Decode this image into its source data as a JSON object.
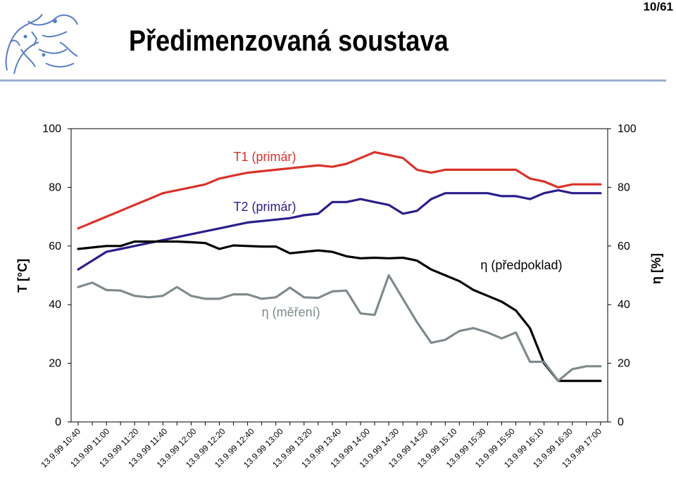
{
  "slide": {
    "number": "10/61",
    "title": "Předimenzovaná soustava"
  },
  "chart_data": {
    "type": "line",
    "xlabel": "",
    "ylabel_left": "T [°C]",
    "ylabel_right": "η [%]",
    "ylim": [
      0,
      100
    ],
    "yticks": [
      0,
      20,
      40,
      60,
      80,
      100
    ],
    "grid": false,
    "categories": [
      "13.9.99 10:40",
      "13.9.99 11:00",
      "13.9.99 11:20",
      "13.9.99 11:40",
      "13.9.99 12:00",
      "13.9.99 12:20",
      "13.9.99 12:40",
      "13.9.99 13:00",
      "13.9.99 13:20",
      "13.9.99 13:40",
      "13.9.99 14:00",
      "13.9.99 14:30",
      "13.9.99 14:50",
      "13.9.99 15:10",
      "13.9.99 15:30",
      "13.9.99 15:50",
      "13.9.99 16:10",
      "13.9.99 16:30",
      "13.9.99 17:00"
    ],
    "series": [
      {
        "name": "T1 (primár)",
        "color": "#d9332b",
        "x": [
          0,
          1,
          2,
          3,
          4,
          5,
          6,
          7,
          8,
          9,
          10,
          11,
          12,
          13,
          14,
          15,
          16,
          17,
          18,
          19,
          20,
          21,
          22,
          23,
          24,
          25,
          26,
          27,
          28,
          29,
          30,
          31,
          32,
          33,
          34,
          35,
          36,
          37
        ],
        "values": [
          66,
          68,
          70,
          72,
          74,
          76,
          78,
          79,
          80,
          81,
          83,
          84,
          85,
          85.5,
          86,
          86.5,
          87,
          87.5,
          87,
          88,
          90,
          92,
          91,
          90,
          86,
          85,
          86,
          86,
          86,
          86,
          86,
          86,
          83,
          82,
          80,
          81,
          81,
          81
        ],
        "label_at": [
          11,
          89
        ]
      },
      {
        "name": "T2 (primár)",
        "color": "#2a1f8a",
        "x": [
          0,
          1,
          2,
          3,
          4,
          5,
          6,
          7,
          8,
          9,
          10,
          11,
          12,
          13,
          14,
          15,
          16,
          17,
          18,
          19,
          20,
          21,
          22,
          23,
          24,
          25,
          26,
          27,
          28,
          29,
          30,
          31,
          32,
          33,
          34,
          35,
          36,
          37
        ],
        "values": [
          52,
          55,
          58,
          59,
          60,
          61,
          62,
          63,
          64,
          65,
          66,
          67,
          68,
          68.5,
          69,
          69.5,
          70.5,
          71,
          75,
          75,
          76,
          75,
          74,
          71,
          72,
          76,
          78,
          78,
          78,
          78,
          77,
          77,
          76,
          78,
          79,
          78,
          78,
          78
        ],
        "label_at": [
          11,
          72
        ]
      },
      {
        "name": "η (předpoklad)",
        "color": "#000000",
        "x": [
          0,
          1,
          2,
          3,
          4,
          5,
          6,
          7,
          8,
          9,
          10,
          11,
          12,
          13,
          14,
          15,
          16,
          17,
          18,
          19,
          20,
          21,
          22,
          23,
          24,
          25,
          26,
          27,
          28,
          29,
          30,
          31,
          32,
          33,
          34,
          35,
          36,
          37
        ],
        "values": [
          59,
          59.5,
          60,
          60,
          61.5,
          61.5,
          61.5,
          61.5,
          61.3,
          61,
          59,
          60.2,
          60,
          59.8,
          59.8,
          57.5,
          58,
          58.5,
          58,
          56.5,
          55.8,
          56,
          55.8,
          56,
          55,
          52,
          50,
          48,
          45,
          43,
          41,
          38,
          32,
          20,
          14,
          14,
          14,
          14
        ],
        "label_at": [
          28.5,
          52
        ]
      },
      {
        "name": "η (měření)",
        "color": "#7f8a8c",
        "x": [
          0,
          1,
          2,
          3,
          4,
          5,
          6,
          7,
          8,
          9,
          10,
          11,
          12,
          13,
          14,
          15,
          16,
          17,
          18,
          19,
          20,
          21,
          22,
          23,
          24,
          25,
          26,
          27,
          28,
          29,
          30,
          31,
          32,
          33,
          34,
          35,
          36,
          37
        ],
        "values": [
          46,
          47.5,
          45,
          44.8,
          43,
          42.5,
          43,
          46,
          43,
          42,
          42,
          43.5,
          43.5,
          42,
          42.5,
          45.8,
          42.5,
          42.3,
          44.5,
          44.8,
          37,
          36.5,
          50,
          42,
          34,
          27,
          28,
          31,
          32,
          30.5,
          28.5,
          30.5,
          20.5,
          20.5,
          14,
          18,
          19,
          19
        ],
        "label_at": [
          13,
          36
        ]
      }
    ]
  }
}
